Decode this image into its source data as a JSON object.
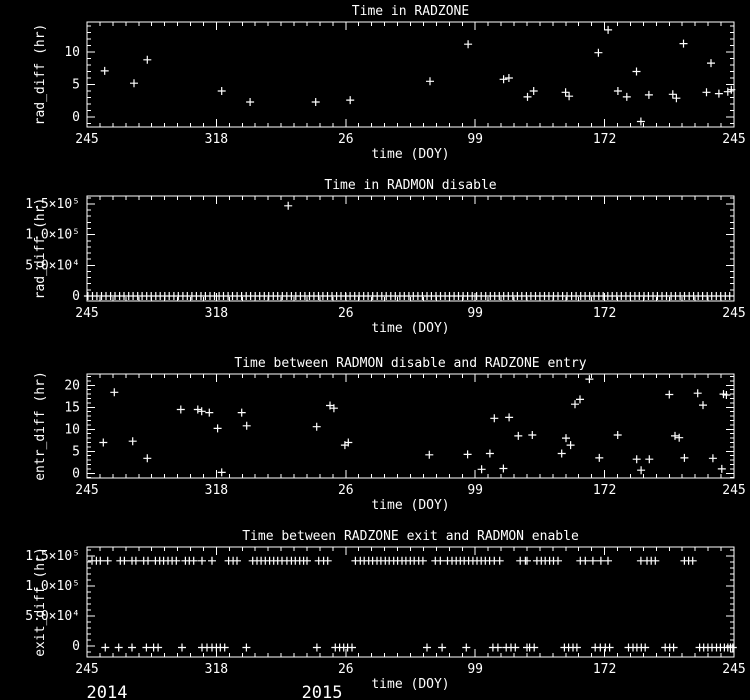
{
  "figure": {
    "background_color": "#000000",
    "axis_color": "#ffffff",
    "text_color": "#ffffff",
    "marker_glyph": "plus",
    "x_axis": {
      "label": "time (DOY)",
      "tick_labels": [
        "245",
        "318",
        "26",
        "99",
        "172",
        "245"
      ],
      "tick_positions_days": [
        0,
        73,
        146,
        219,
        292,
        365
      ],
      "range_days": [
        0,
        365
      ],
      "minor_tick_step_days": 7.3
    },
    "year_labels": [
      {
        "text": "2014",
        "day": 11.3
      },
      {
        "text": "2015",
        "day": 132.6
      }
    ]
  },
  "chart_data": [
    {
      "type": "scatter",
      "title": "Time in RADZONE",
      "ylabel": "rad_diff (hr)",
      "xlabel": "time (DOY)",
      "ylim": [
        -1.54,
        14.62
      ],
      "y_major_ticks": [
        0,
        5,
        10
      ],
      "y_tick_labels": [
        "0",
        "5",
        "10"
      ],
      "y_minor_step": 1,
      "points": [
        [
          10,
          7.1
        ],
        [
          26.5,
          5.2
        ],
        [
          34,
          8.8
        ],
        [
          76,
          4.0
        ],
        [
          92,
          2.3
        ],
        [
          129,
          2.3
        ],
        [
          148.5,
          2.6
        ],
        [
          193.5,
          5.5
        ],
        [
          215,
          11.2
        ],
        [
          235,
          5.8
        ],
        [
          238,
          6.0
        ],
        [
          248.5,
          3.1
        ],
        [
          252,
          4.0
        ],
        [
          270,
          3.8
        ],
        [
          272,
          3.2
        ],
        [
          288.5,
          9.9
        ],
        [
          294,
          13.4
        ],
        [
          299.5,
          4.0
        ],
        [
          304.5,
          3.1
        ],
        [
          310,
          7.0
        ],
        [
          312.5,
          -0.7
        ],
        [
          317,
          3.4
        ],
        [
          330.5,
          3.5
        ],
        [
          332.5,
          2.9
        ],
        [
          336.5,
          11.3
        ],
        [
          349.5,
          3.8
        ],
        [
          352,
          8.3
        ],
        [
          356.5,
          3.6
        ],
        [
          361.5,
          3.9
        ],
        [
          363.5,
          4.2
        ]
      ]
    },
    {
      "type": "scatter",
      "title": "Time in RADMON disable",
      "ylabel": "rad_diff (hr)",
      "xlabel": "time (DOY)",
      "ylim": [
        -8100,
        162900
      ],
      "y_major_ticks": [
        0,
        50000,
        100000,
        150000
      ],
      "y_tick_labels": [
        "0",
        "5.0×10⁴",
        "1.0×10⁵",
        "1.5×10⁵"
      ],
      "y_minor_step": 10000,
      "points": [
        [
          113.5,
          147000
        ]
      ],
      "baseline": {
        "y": 0,
        "x": [
          0.5,
          3.1,
          5.6,
          8.2,
          10.7,
          13.3,
          15.8,
          18.4,
          20.9,
          23.5,
          26.0,
          28.6,
          31.1,
          33.7,
          36.2,
          38.8,
          41.3,
          43.9,
          46.4,
          49.0,
          51.5,
          54.1,
          56.6,
          59.2,
          61.7,
          64.3,
          66.8,
          69.4,
          71.9,
          74.5,
          77.0,
          79.6,
          82.1,
          84.7,
          87.2,
          89.8,
          92.3,
          94.9,
          97.4,
          100.0,
          102.5,
          105.1,
          107.6,
          110.2,
          112.7,
          115.3,
          117.8,
          120.4,
          122.9,
          125.5,
          128.0,
          130.6,
          133.1,
          135.7,
          138.2,
          140.8,
          143.3,
          145.9,
          148.4,
          151.0,
          153.5,
          156.1,
          158.6,
          161.2,
          163.7,
          166.3,
          168.8,
          171.4,
          173.9,
          176.5,
          179.0,
          181.6,
          184.1,
          186.7,
          189.2,
          191.8,
          194.3,
          196.9,
          199.4,
          202.0,
          204.5,
          207.1,
          209.6,
          212.2,
          214.7,
          217.3,
          219.8,
          222.4,
          224.9,
          227.5,
          230.0,
          232.6,
          235.1,
          237.7,
          240.2,
          242.8,
          245.3,
          247.9,
          250.4,
          253.0,
          255.5,
          258.1,
          260.6,
          263.2,
          265.7,
          268.3,
          270.8,
          273.4,
          275.9,
          278.5,
          281.0,
          283.6,
          286.1,
          288.7,
          291.2,
          293.8,
          296.3,
          298.9,
          301.4,
          304.0,
          306.5,
          309.1,
          311.6,
          314.2,
          316.7,
          319.3,
          321.8,
          324.4,
          326.9,
          329.5,
          332.0,
          334.6,
          337.1,
          339.7,
          342.2,
          344.8,
          347.3,
          349.9,
          352.4,
          355.0,
          357.5,
          360.1,
          362.6
        ]
      }
    },
    {
      "type": "scatter",
      "title": "Time between RADMON disable and RADZONE entry",
      "ylabel": "entr_diff (hr)",
      "xlabel": "time (DOY)",
      "ylim": [
        -1.07,
        22.57
      ],
      "y_major_ticks": [
        0,
        5,
        10,
        15,
        20
      ],
      "y_tick_labels": [
        "0",
        "5",
        "10",
        "15",
        "20"
      ],
      "y_minor_step": 1,
      "points": [
        [
          9.2,
          7.0
        ],
        [
          15.4,
          18.4
        ],
        [
          25.8,
          7.3
        ],
        [
          34,
          3.4
        ],
        [
          52.9,
          14.5
        ],
        [
          62.5,
          14.5
        ],
        [
          64.7,
          14.1
        ],
        [
          69,
          13.8
        ],
        [
          73.7,
          10.2
        ],
        [
          76,
          0.2
        ],
        [
          87.3,
          13.8
        ],
        [
          90.1,
          10.8
        ],
        [
          129.6,
          10.6
        ],
        [
          137.1,
          15.4
        ],
        [
          139.3,
          14.8
        ],
        [
          145.5,
          6.4
        ],
        [
          147.4,
          7.0
        ],
        [
          193.1,
          4.2
        ],
        [
          214.7,
          4.3
        ],
        [
          222.6,
          0.9
        ],
        [
          227.3,
          4.5
        ],
        [
          229.8,
          12.5
        ],
        [
          234.9,
          1.1
        ],
        [
          238.1,
          12.7
        ],
        [
          243.3,
          8.5
        ],
        [
          251.2,
          8.7
        ],
        [
          267.8,
          4.5
        ],
        [
          270.2,
          8.0
        ],
        [
          272.8,
          6.4
        ],
        [
          275.3,
          15.7
        ],
        [
          278.1,
          16.8
        ],
        [
          283.4,
          21.4
        ],
        [
          289,
          3.5
        ],
        [
          299.4,
          8.7
        ],
        [
          310.1,
          3.2
        ],
        [
          312.6,
          0.7
        ],
        [
          317.2,
          3.2
        ],
        [
          328.5,
          17.9
        ],
        [
          331.7,
          8.5
        ],
        [
          334.1,
          8.1
        ],
        [
          337,
          3.5
        ],
        [
          344.5,
          18.2
        ],
        [
          347.5,
          15.5
        ],
        [
          353.1,
          3.4
        ],
        [
          358.1,
          1.0
        ],
        [
          359.1,
          18.0
        ],
        [
          360.7,
          17.8
        ]
      ]
    },
    {
      "type": "scatter",
      "title": "Time between RADZONE exit and RADMON enable",
      "ylabel": "exit_diff (hr)",
      "xlabel": "time (DOY)",
      "ylim": [
        -18300,
        165000
      ],
      "y_major_ticks": [
        0,
        50000,
        100000,
        150000
      ],
      "y_tick_labels": [
        "0",
        "5.0×10⁴",
        "1.0×10⁵",
        "1.5×10⁵"
      ],
      "y_minor_step": 10000,
      "points": [],
      "bands": [
        {
          "y": 142000,
          "x": [
            2.8,
            5.3,
            7.5,
            11.7,
            18.8,
            21.1,
            25.4,
            27.6,
            32.0,
            34.4,
            38.6,
            41.0,
            43.2,
            45.7,
            48.0,
            50.4,
            55.5,
            57.7,
            60.2,
            64.9,
            70.5,
            79.9,
            82.4,
            84.6,
            93.5,
            95.9,
            98.2,
            100.6,
            103.0,
            105.3,
            107.6,
            110.0,
            112.8,
            115.3,
            117.5,
            120.0,
            122.2,
            124.1,
            130.7,
            133.5,
            135.8,
            151.4,
            154.2,
            156.4,
            158.9,
            161.1,
            163.6,
            165.8,
            168.3,
            170.5,
            173.0,
            175.2,
            177.7,
            179.9,
            182.4,
            184.6,
            187.1,
            189.5,
            196.5,
            199.3,
            203.4,
            205.9,
            208.3,
            210.6,
            212.8,
            215.3,
            217.7,
            220.0,
            222.4,
            224.7,
            227.1,
            229.8,
            232.8,
            244.4,
            247.3,
            248.2,
            253.8,
            256.3,
            258.5,
            261.0,
            263.2,
            265.7,
            278.3,
            281.1,
            285.4,
            289.9,
            293.9,
            312.5,
            315.9,
            318.3,
            320.6,
            337.0,
            339.4,
            341.7
          ]
        },
        {
          "y": -2500,
          "x": [
            10.3,
            17.9,
            25.4,
            33.5,
            37.6,
            40.1,
            53.6,
            64.9,
            67.7,
            70.5,
            73.0,
            75.2,
            77.7,
            89.9,
            129.7,
            140.1,
            142.5,
            144.8,
            147.0,
            149.5,
            191.8,
            200.3,
            214.0,
            229.0,
            231.8,
            236.5,
            239.2,
            241.6,
            248.2,
            249.7,
            252.3,
            269.3,
            271.7,
            274.2,
            276.4,
            286.7,
            289.6,
            292.4,
            294.8,
            305.5,
            308.0,
            310.2,
            312.7,
            314.9,
            326.2,
            328.7,
            330.9,
            345.6,
            347.9,
            350.3,
            352.6,
            355.1,
            357.3,
            359.6,
            361.5,
            363.0,
            364.3
          ]
        }
      ]
    }
  ]
}
